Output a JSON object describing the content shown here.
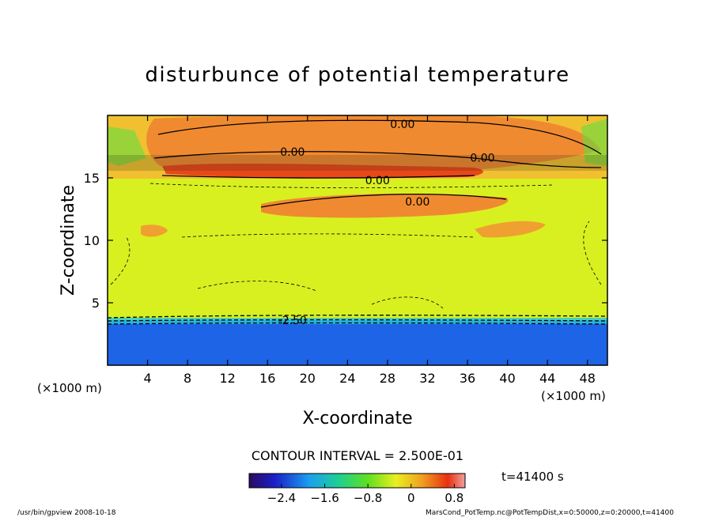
{
  "chart_data": {
    "type": "heatmap",
    "title": "disturbunce of potential temperature",
    "xlabel": "X-coordinate",
    "ylabel": "Z-coordinate",
    "x_unit_left": "(×1000 m)",
    "x_unit_right": "(×1000 m)",
    "xlim": [
      0,
      50
    ],
    "ylim": [
      0,
      20
    ],
    "x_ticks": [
      4,
      8,
      12,
      16,
      20,
      24,
      28,
      32,
      36,
      40,
      44,
      48
    ],
    "y_ticks": [
      5,
      10,
      15
    ],
    "contour_interval_text": "CONTOUR INTERVAL = 2.500E-01",
    "time_text": "t=41400 s",
    "colorbar": {
      "min": -3.0,
      "max": 1.0,
      "ticks": [
        -2.4,
        -1.6,
        -0.8,
        0,
        0.8
      ],
      "tick_labels": [
        "−2.4",
        "−1.6",
        "−0.8",
        "0",
        "0.8"
      ]
    },
    "contour_labels": [
      {
        "text": "0.00",
        "x": 29.5,
        "z": 19.3
      },
      {
        "text": "0.00",
        "x": 18.5,
        "z": 17.1
      },
      {
        "text": "0.00",
        "x": 37.5,
        "z": 16.6
      },
      {
        "text": "0.00",
        "x": 27.0,
        "z": 14.8
      },
      {
        "text": "0.00",
        "x": 31.0,
        "z": 13.1
      },
      {
        "text": "-2.50",
        "x": 18.5,
        "z": 3.6
      }
    ],
    "footer_left": "/usr/bin/gpview   2008-10-18",
    "footer_right": "MarsCond_PotTemp.nc@PotTempDist,x=0:50000,z=0:20000,t=41400"
  }
}
